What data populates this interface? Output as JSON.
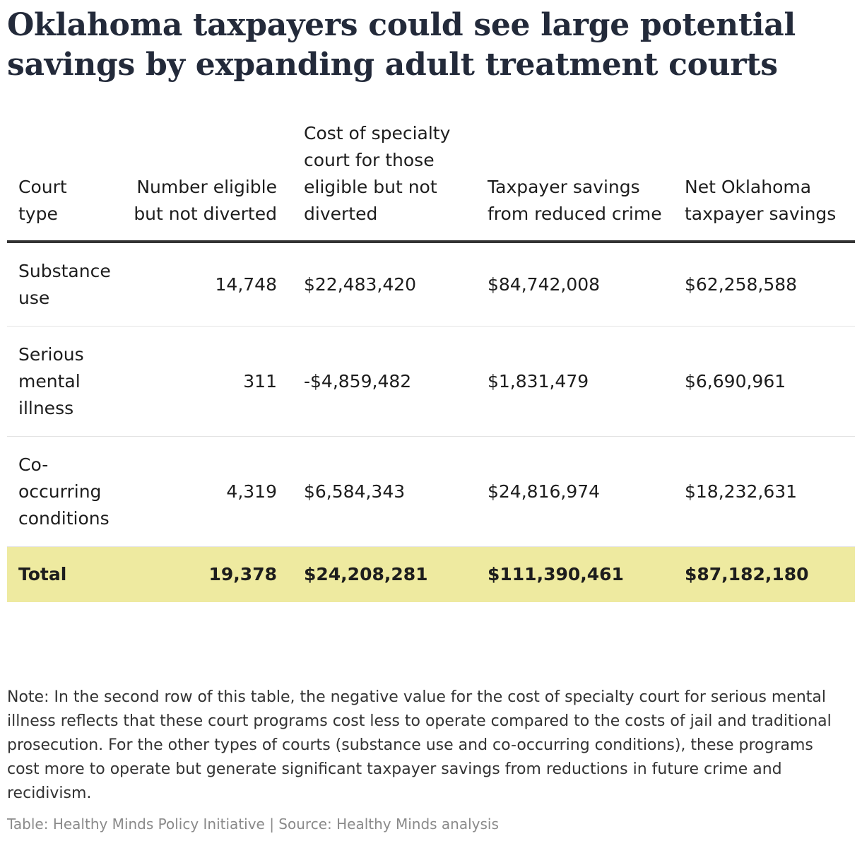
{
  "title": "Oklahoma taxpayers could see large potential savings by expanding adult treatment courts",
  "chart_data": {
    "type": "table",
    "title": "Oklahoma taxpayers could see large potential savings by expanding adult treatment courts",
    "columns": [
      "Court type",
      "Number eligible but not diverted",
      "Cost of specialty court for those eligible but not diverted",
      "Taxpayer savings from reduced crime",
      "Net Oklahoma taxpayer savings"
    ],
    "rows": [
      {
        "court_type": "Substance use",
        "eligible": "14,748",
        "cost": "$22,483,420",
        "savings": "$84,742,008",
        "net": "$62,258,588"
      },
      {
        "court_type": "Serious mental illness",
        "eligible": "311",
        "cost": "-$4,859,482",
        "savings": "$1,831,479",
        "net": "$6,690,961"
      },
      {
        "court_type": "Co-occurring conditions",
        "eligible": "4,319",
        "cost": "$6,584,343",
        "savings": "$24,816,974",
        "net": "$18,232,631"
      }
    ],
    "total": {
      "court_type": "Total",
      "eligible": "19,378",
      "cost": "$24,208,281",
      "savings": "$111,390,461",
      "net": "$87,182,180"
    },
    "highlight_color": "#eeeaa0"
  },
  "note": "Note: In the second row of this table, the negative value for the cost of specialty court for serious mental illness reflects that these court programs cost less to operate compared to the costs of jail and traditional prosecution. For the other types of courts (substance use and co-occurring conditions), these programs cost more to operate but generate significant taxpayer savings from reductions in future crime and recidivism.",
  "source": "Table: Healthy Minds Policy Initiative | Source: Healthy Minds analysis"
}
